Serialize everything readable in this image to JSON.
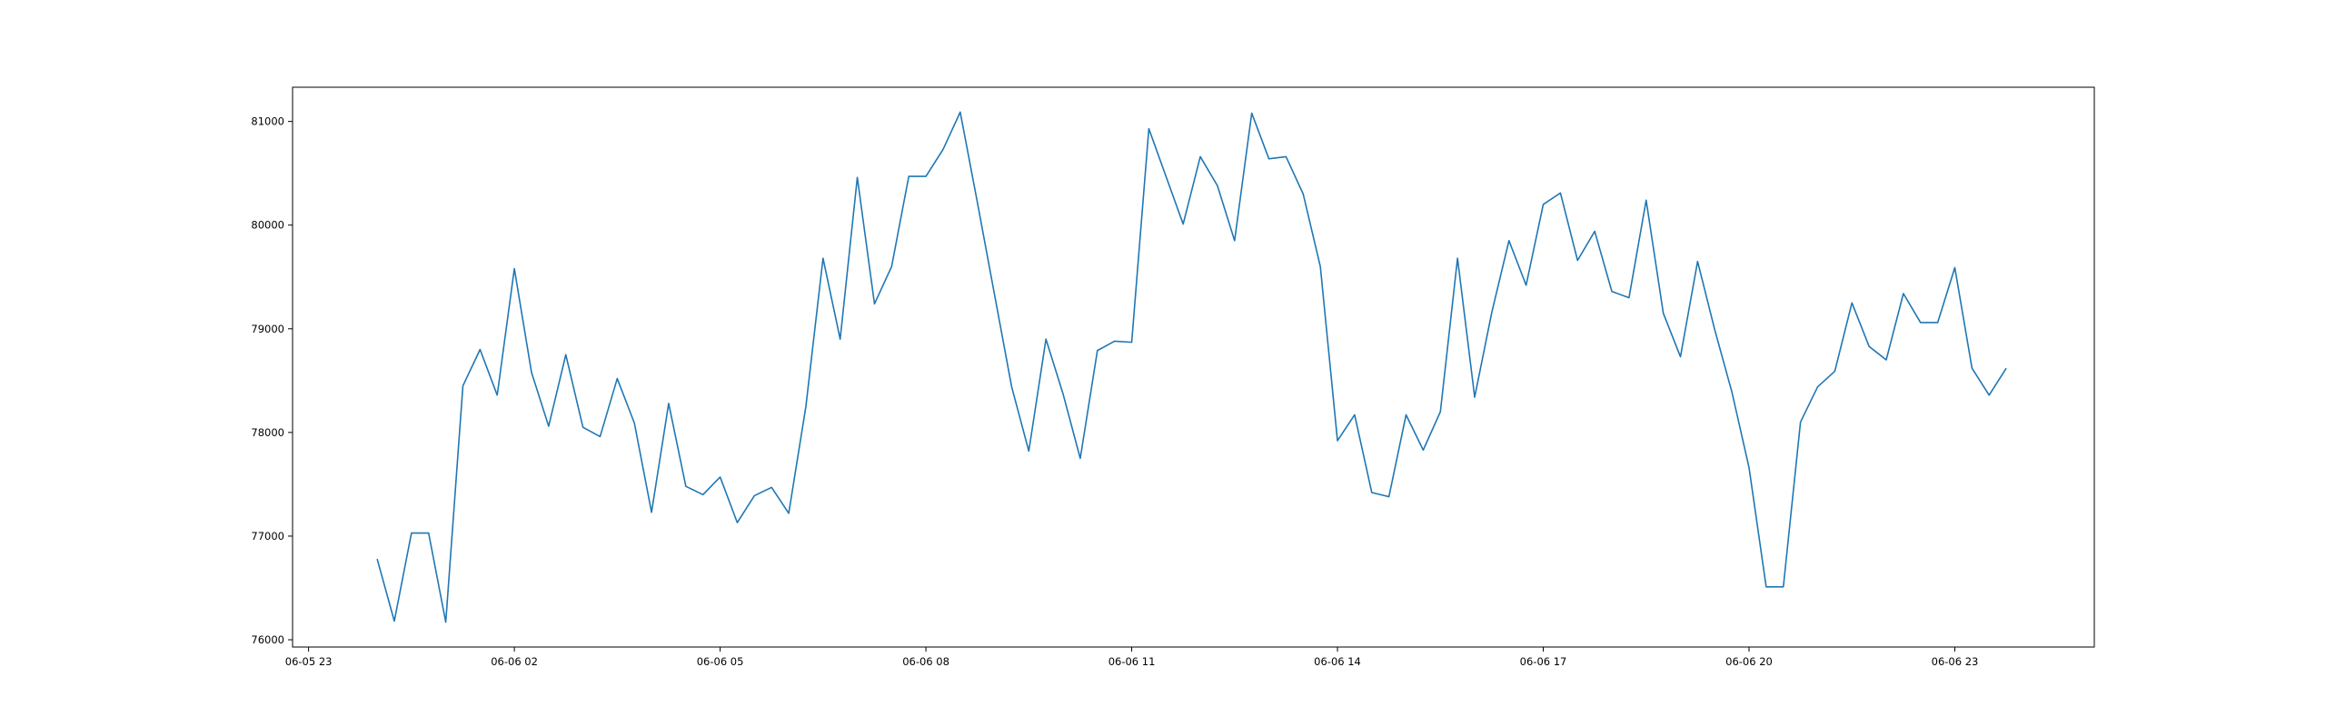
{
  "chart_data": {
    "type": "line",
    "title": "",
    "xlabel": "",
    "ylabel": "",
    "x_ticks": [
      "06-05 23",
      "06-06 02",
      "06-06 05",
      "06-06 08",
      "06-06 11",
      "06-06 14",
      "06-06 17",
      "06-06 20",
      "06-06 23"
    ],
    "y_ticks": [
      76000,
      77000,
      78000,
      79000,
      80000,
      81000
    ],
    "xlim": [
      "2023-06-05 22:46",
      "2023-06-07 01:02"
    ],
    "ylim": [
      75930,
      81330
    ],
    "grid": false,
    "legend": "none",
    "series": [
      {
        "color": "#1f77b4",
        "x": [
          "2023-06-06 00:00",
          "2023-06-06 00:15",
          "2023-06-06 00:30",
          "2023-06-06 00:45",
          "2023-06-06 01:00",
          "2023-06-06 01:15",
          "2023-06-06 01:30",
          "2023-06-06 01:45",
          "2023-06-06 02:00",
          "2023-06-06 02:15",
          "2023-06-06 02:30",
          "2023-06-06 02:45",
          "2023-06-06 03:00",
          "2023-06-06 03:15",
          "2023-06-06 03:30",
          "2023-06-06 03:45",
          "2023-06-06 04:00",
          "2023-06-06 04:15",
          "2023-06-06 04:30",
          "2023-06-06 04:45",
          "2023-06-06 05:00",
          "2023-06-06 05:15",
          "2023-06-06 05:30",
          "2023-06-06 05:45",
          "2023-06-06 06:00",
          "2023-06-06 06:15",
          "2023-06-06 06:30",
          "2023-06-06 06:45",
          "2023-06-06 07:00",
          "2023-06-06 07:15",
          "2023-06-06 07:30",
          "2023-06-06 07:45",
          "2023-06-06 08:00",
          "2023-06-06 08:15",
          "2023-06-06 08:30",
          "2023-06-06 08:45",
          "2023-06-06 09:00",
          "2023-06-06 09:15",
          "2023-06-06 09:30",
          "2023-06-06 09:45",
          "2023-06-06 10:00",
          "2023-06-06 10:15",
          "2023-06-06 10:30",
          "2023-06-06 10:45",
          "2023-06-06 11:00",
          "2023-06-06 11:15",
          "2023-06-06 11:30",
          "2023-06-06 11:45",
          "2023-06-06 12:00",
          "2023-06-06 12:15",
          "2023-06-06 12:30",
          "2023-06-06 12:45",
          "2023-06-06 13:00",
          "2023-06-06 13:15",
          "2023-06-06 13:30",
          "2023-06-06 13:45",
          "2023-06-06 14:00",
          "2023-06-06 14:15",
          "2023-06-06 14:30",
          "2023-06-06 14:45",
          "2023-06-06 15:00",
          "2023-06-06 15:15",
          "2023-06-06 15:30",
          "2023-06-06 15:45",
          "2023-06-06 16:00",
          "2023-06-06 16:15",
          "2023-06-06 16:30",
          "2023-06-06 16:45",
          "2023-06-06 17:00",
          "2023-06-06 17:15",
          "2023-06-06 17:30",
          "2023-06-06 17:45",
          "2023-06-06 18:00",
          "2023-06-06 18:15",
          "2023-06-06 18:30",
          "2023-06-06 18:45",
          "2023-06-06 19:00",
          "2023-06-06 19:15",
          "2023-06-06 19:30",
          "2023-06-06 19:45",
          "2023-06-06 20:00",
          "2023-06-06 20:15",
          "2023-06-06 20:30",
          "2023-06-06 20:45",
          "2023-06-06 21:00",
          "2023-06-06 21:15",
          "2023-06-06 21:30",
          "2023-06-06 21:45",
          "2023-06-06 22:00",
          "2023-06-06 22:15",
          "2023-06-06 22:30",
          "2023-06-06 22:45",
          "2023-06-06 23:00",
          "2023-06-06 23:15",
          "2023-06-06 23:30",
          "2023-06-06 23:45"
        ],
        "y": [
          76780,
          76180,
          77030,
          77030,
          76170,
          78450,
          78800,
          78360,
          79580,
          78580,
          78060,
          78750,
          78050,
          77960,
          78520,
          78090,
          77230,
          78280,
          77480,
          77400,
          77570,
          77130,
          77390,
          77470,
          77220,
          78250,
          79680,
          78900,
          80460,
          79240,
          79600,
          80470,
          80470,
          80730,
          81090,
          80220,
          79330,
          78440,
          77820,
          78900,
          78370,
          77750,
          78790,
          78880,
          78870,
          80930,
          80470,
          80010,
          80660,
          80380,
          79850,
          81080,
          80640,
          80660,
          80300,
          79600,
          77920,
          78170,
          77420,
          77380,
          78170,
          77830,
          78200,
          79680,
          78340,
          79160,
          79850,
          79420,
          80200,
          80310,
          79660,
          79940,
          79360,
          79300,
          80240,
          79150,
          78730,
          79650,
          78990,
          78390,
          77660,
          76510,
          76510,
          78100,
          78440,
          78590,
          79250,
          78830,
          78700,
          79340,
          79060,
          79060,
          79590,
          78620,
          78360,
          78620
        ]
      }
    ]
  }
}
